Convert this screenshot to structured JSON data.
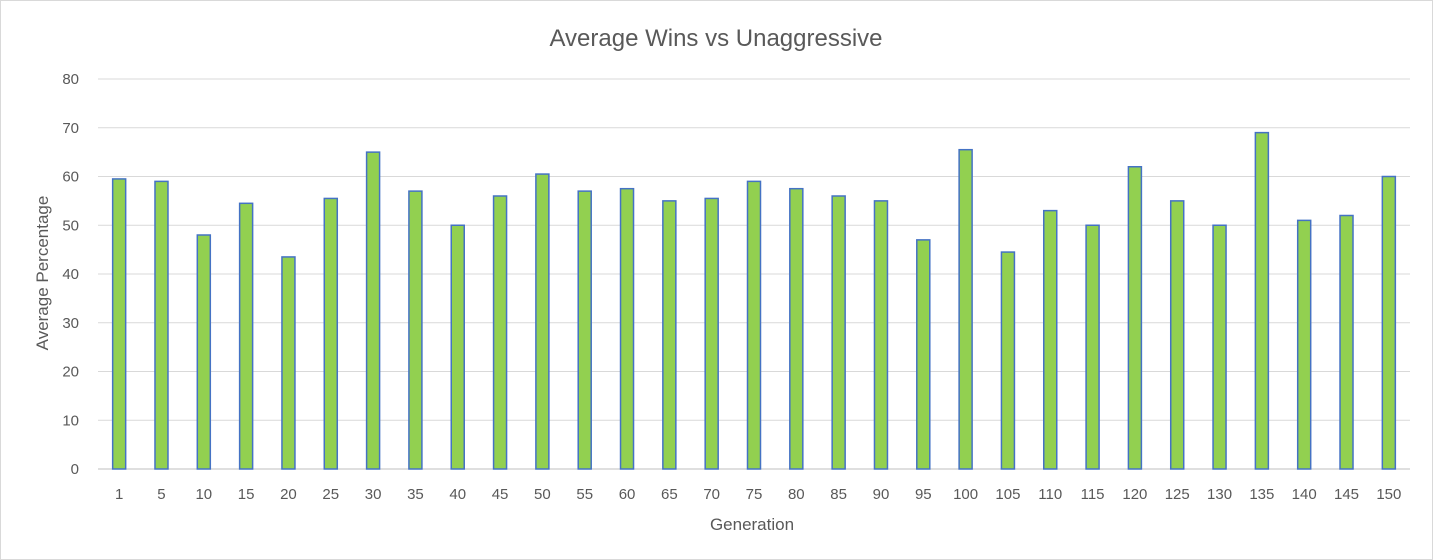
{
  "chart_data": {
    "type": "bar",
    "title": "Average Wins vs Unaggressive",
    "xlabel": "Generation",
    "ylabel": "Average Percentage",
    "ylim": [
      0,
      80
    ],
    "yticks": [
      0,
      10,
      20,
      30,
      40,
      50,
      60,
      70,
      80
    ],
    "grid": true,
    "legend": "none",
    "categories": [
      "1",
      "5",
      "10",
      "15",
      "20",
      "25",
      "30",
      "35",
      "40",
      "45",
      "50",
      "55",
      "60",
      "65",
      "70",
      "75",
      "80",
      "85",
      "90",
      "95",
      "100",
      "105",
      "110",
      "115",
      "120",
      "125",
      "130",
      "135",
      "140",
      "145",
      "150"
    ],
    "values": [
      59.5,
      59,
      48,
      54.5,
      43.5,
      55.5,
      65,
      57,
      50,
      56,
      60.5,
      57,
      57.5,
      55,
      55.5,
      59,
      57.5,
      56,
      55,
      47,
      65.5,
      44.5,
      53,
      50,
      62,
      55,
      50,
      69,
      51,
      52,
      60
    ],
    "colors": {
      "bar_fill": "#92d050",
      "bar_stroke": "#4472c4"
    }
  }
}
